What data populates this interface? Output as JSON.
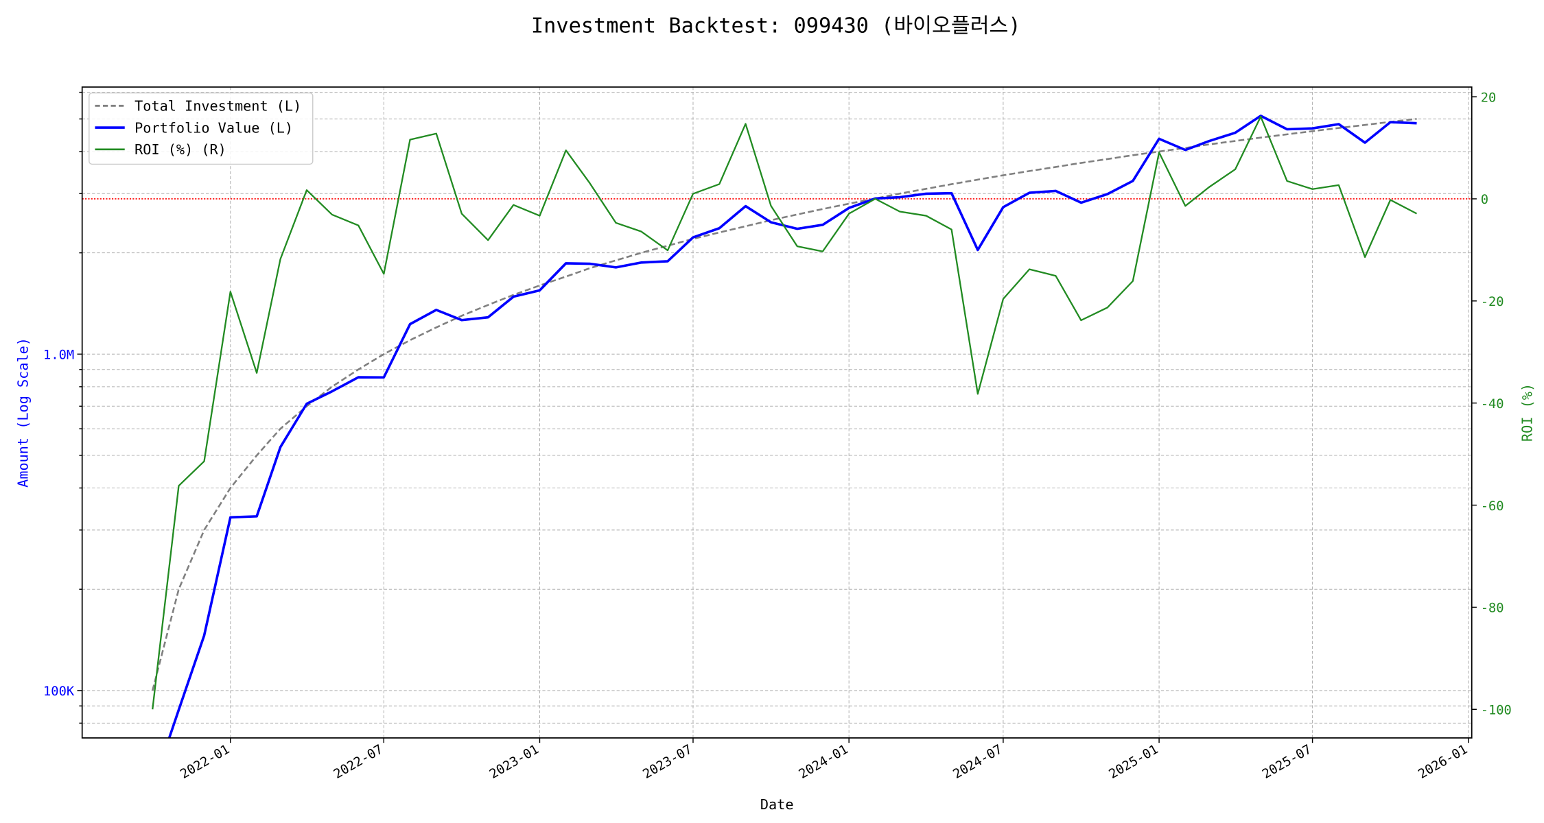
{
  "chart_data": {
    "type": "line",
    "title": "Investment Backtest: 099430 (바이오플러스)",
    "xlabel": "Date",
    "ylabel": "Amount (Log Scale)",
    "ylabel_right": "ROI (%)",
    "x": [
      "2021-10",
      "2021-11",
      "2021-12",
      "2022-01",
      "2022-02",
      "2022-03",
      "2022-04",
      "2022-05",
      "2022-06",
      "2022-07",
      "2022-08",
      "2022-09",
      "2022-10",
      "2022-11",
      "2022-12",
      "2023-01",
      "2023-02",
      "2023-03",
      "2023-04",
      "2023-05",
      "2023-06",
      "2023-07",
      "2023-08",
      "2023-09",
      "2023-10",
      "2023-11",
      "2023-12",
      "2024-01",
      "2024-02",
      "2024-03",
      "2024-04",
      "2024-05",
      "2024-06",
      "2024-07",
      "2024-08",
      "2024-09",
      "2024-10",
      "2024-11",
      "2024-12",
      "2025-01",
      "2025-02",
      "2025-03",
      "2025-04",
      "2025-05",
      "2025-06",
      "2025-07",
      "2025-08",
      "2025-09",
      "2025-10",
      "2025-11"
    ],
    "series": [
      {
        "name": "Total Investment (L)",
        "axis": "left",
        "color": "#808080",
        "style": "dashed",
        "values": [
          100000,
          200000,
          300000,
          400000,
          500000,
          600000,
          700000,
          800000,
          900000,
          1000000,
          1100000,
          1200000,
          1300000,
          1400000,
          1500000,
          1600000,
          1700000,
          1800000,
          1900000,
          2000000,
          2100000,
          2200000,
          2300000,
          2400000,
          2500000,
          2600000,
          2700000,
          2800000,
          2900000,
          3000000,
          3100000,
          3200000,
          3300000,
          3400000,
          3500000,
          3600000,
          3700000,
          3800000,
          3900000,
          4000000,
          4100000,
          4200000,
          4300000,
          4400000,
          4500000,
          4600000,
          4700000,
          4800000,
          4900000,
          5000000
        ]
      },
      {
        "name": "Portfolio Value (L)",
        "axis": "left",
        "color": "#0000ff",
        "style": "solid",
        "values": [
          0,
          87600,
          145800,
          327200,
          329500,
          529200,
          711900,
          775200,
          853200,
          853000,
          1227600,
          1353600,
          1262300,
          1286600,
          1482000,
          1547200,
          1861500,
          1855800,
          1810700,
          1872000,
          1887900,
          2222000,
          2366700,
          2752800,
          2465000,
          2358200,
          2421900,
          2718800,
          2900000,
          2925000,
          2997900,
          3008000,
          2039400,
          2733600,
          3017000,
          3056400,
          2819400,
          2990600,
          3272100,
          4364000,
          4042600,
          4296600,
          4549400,
          5108400,
          4657500,
          4687400,
          4826900,
          4252800,
          4890200,
          4855000
        ]
      },
      {
        "name": "ROI (%) (R)",
        "axis": "right",
        "color": "#228b22",
        "style": "solid",
        "values": [
          -100,
          -56.2,
          -51.4,
          -18.2,
          -34.1,
          -11.8,
          1.7,
          -3.1,
          -5.2,
          -14.7,
          11.6,
          12.8,
          -2.9,
          -8.1,
          -1.2,
          -3.3,
          9.5,
          3.1,
          -4.7,
          -6.4,
          -10.1,
          1.0,
          2.9,
          14.7,
          -1.4,
          -9.3,
          -10.3,
          -2.9,
          0,
          -2.5,
          -3.3,
          -6.0,
          -38.2,
          -19.6,
          -13.8,
          -15.1,
          -23.8,
          -21.3,
          -16.1,
          9.1,
          -1.4,
          2.3,
          5.8,
          16.1,
          3.5,
          1.9,
          2.7,
          -11.4,
          -0.2,
          -2.9
        ]
      }
    ],
    "ylim_left": [
      72300,
      6220000
    ],
    "yticks_left": [
      {
        "value": 100000,
        "label": "100K"
      },
      {
        "value": 1000000,
        "label": "1.0M"
      }
    ],
    "ylim_right": [
      -105.6,
      21.9
    ],
    "yticks_right": [
      -100,
      -80,
      -60,
      -40,
      -20,
      0,
      20
    ],
    "xticks": [
      "2022-01",
      "2022-07",
      "2023-01",
      "2023-07",
      "2024-01",
      "2024-07",
      "2025-01",
      "2025-07",
      "2026-01"
    ],
    "xlim": [
      "2021-07-10",
      "2026-01-05"
    ],
    "reference_line": {
      "axis": "right",
      "value": 0,
      "color": "#ff0000",
      "style": "dotted"
    },
    "grid": true,
    "legend": "upper-left",
    "left_axis_color": "#0000ff",
    "right_axis_color": "#228b22"
  }
}
